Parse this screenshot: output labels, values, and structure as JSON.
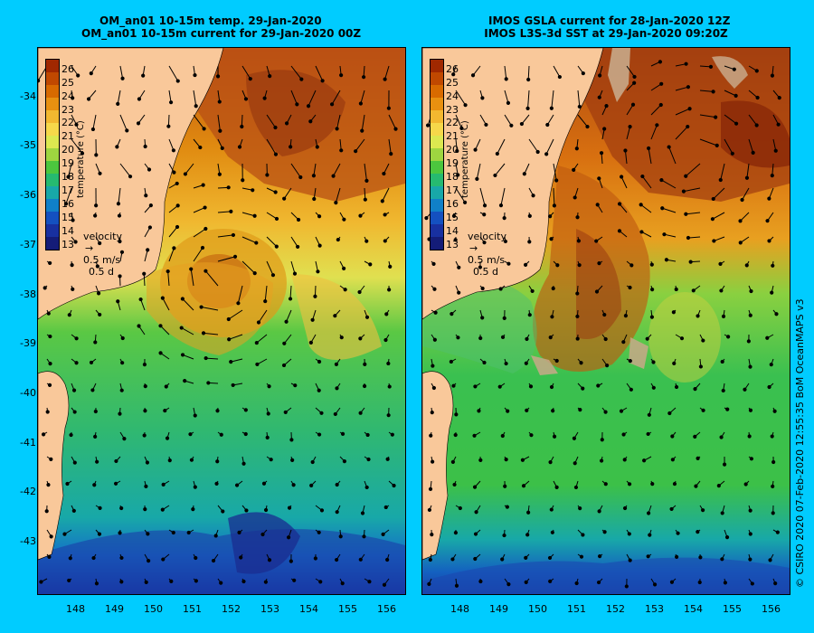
{
  "left": {
    "title_line1": "OM_an01 10-15m temp. 29-Jan-2020",
    "title_line2": "OM_an01 10-15m current for 29-Jan-2020 00Z"
  },
  "right": {
    "title_line1": "IMOS GSLA current for 28-Jan-2020 12Z",
    "title_line2": "IMOS L3S-3d SST at 29-Jan-2020 09:20Z"
  },
  "colorbar": {
    "ticks": [
      "26",
      "25",
      "24",
      "23",
      "22",
      "21",
      "20",
      "19",
      "18",
      "17",
      "16",
      "15",
      "14",
      "13"
    ],
    "label": "temperature (°C)",
    "colors": [
      "#a02800",
      "#c04800",
      "#d86a00",
      "#e89010",
      "#f2b830",
      "#f6d84a",
      "#dce850",
      "#9ed640",
      "#4cc63e",
      "#26ba70",
      "#18a8a8",
      "#1080c8",
      "#1450c0",
      "#1830a0",
      "#141c78"
    ]
  },
  "velocity_key": {
    "label": "velocity",
    "speed": "0.5 m/s",
    "duration": "0.5 d"
  },
  "axes": {
    "y_ticks": [
      "-34",
      "-35",
      "-36",
      "-37",
      "-38",
      "-39",
      "-40",
      "-41",
      "-42",
      "-43"
    ],
    "x_ticks": [
      "148",
      "149",
      "150",
      "151",
      "152",
      "153",
      "154",
      "155",
      "156"
    ]
  },
  "colors": {
    "background": "#00ccff",
    "land": "#f9c89a"
  },
  "credit": "© CSIRO 2020  07-Feb-2020 12:55:35 BoM OceanMAPS v3"
}
